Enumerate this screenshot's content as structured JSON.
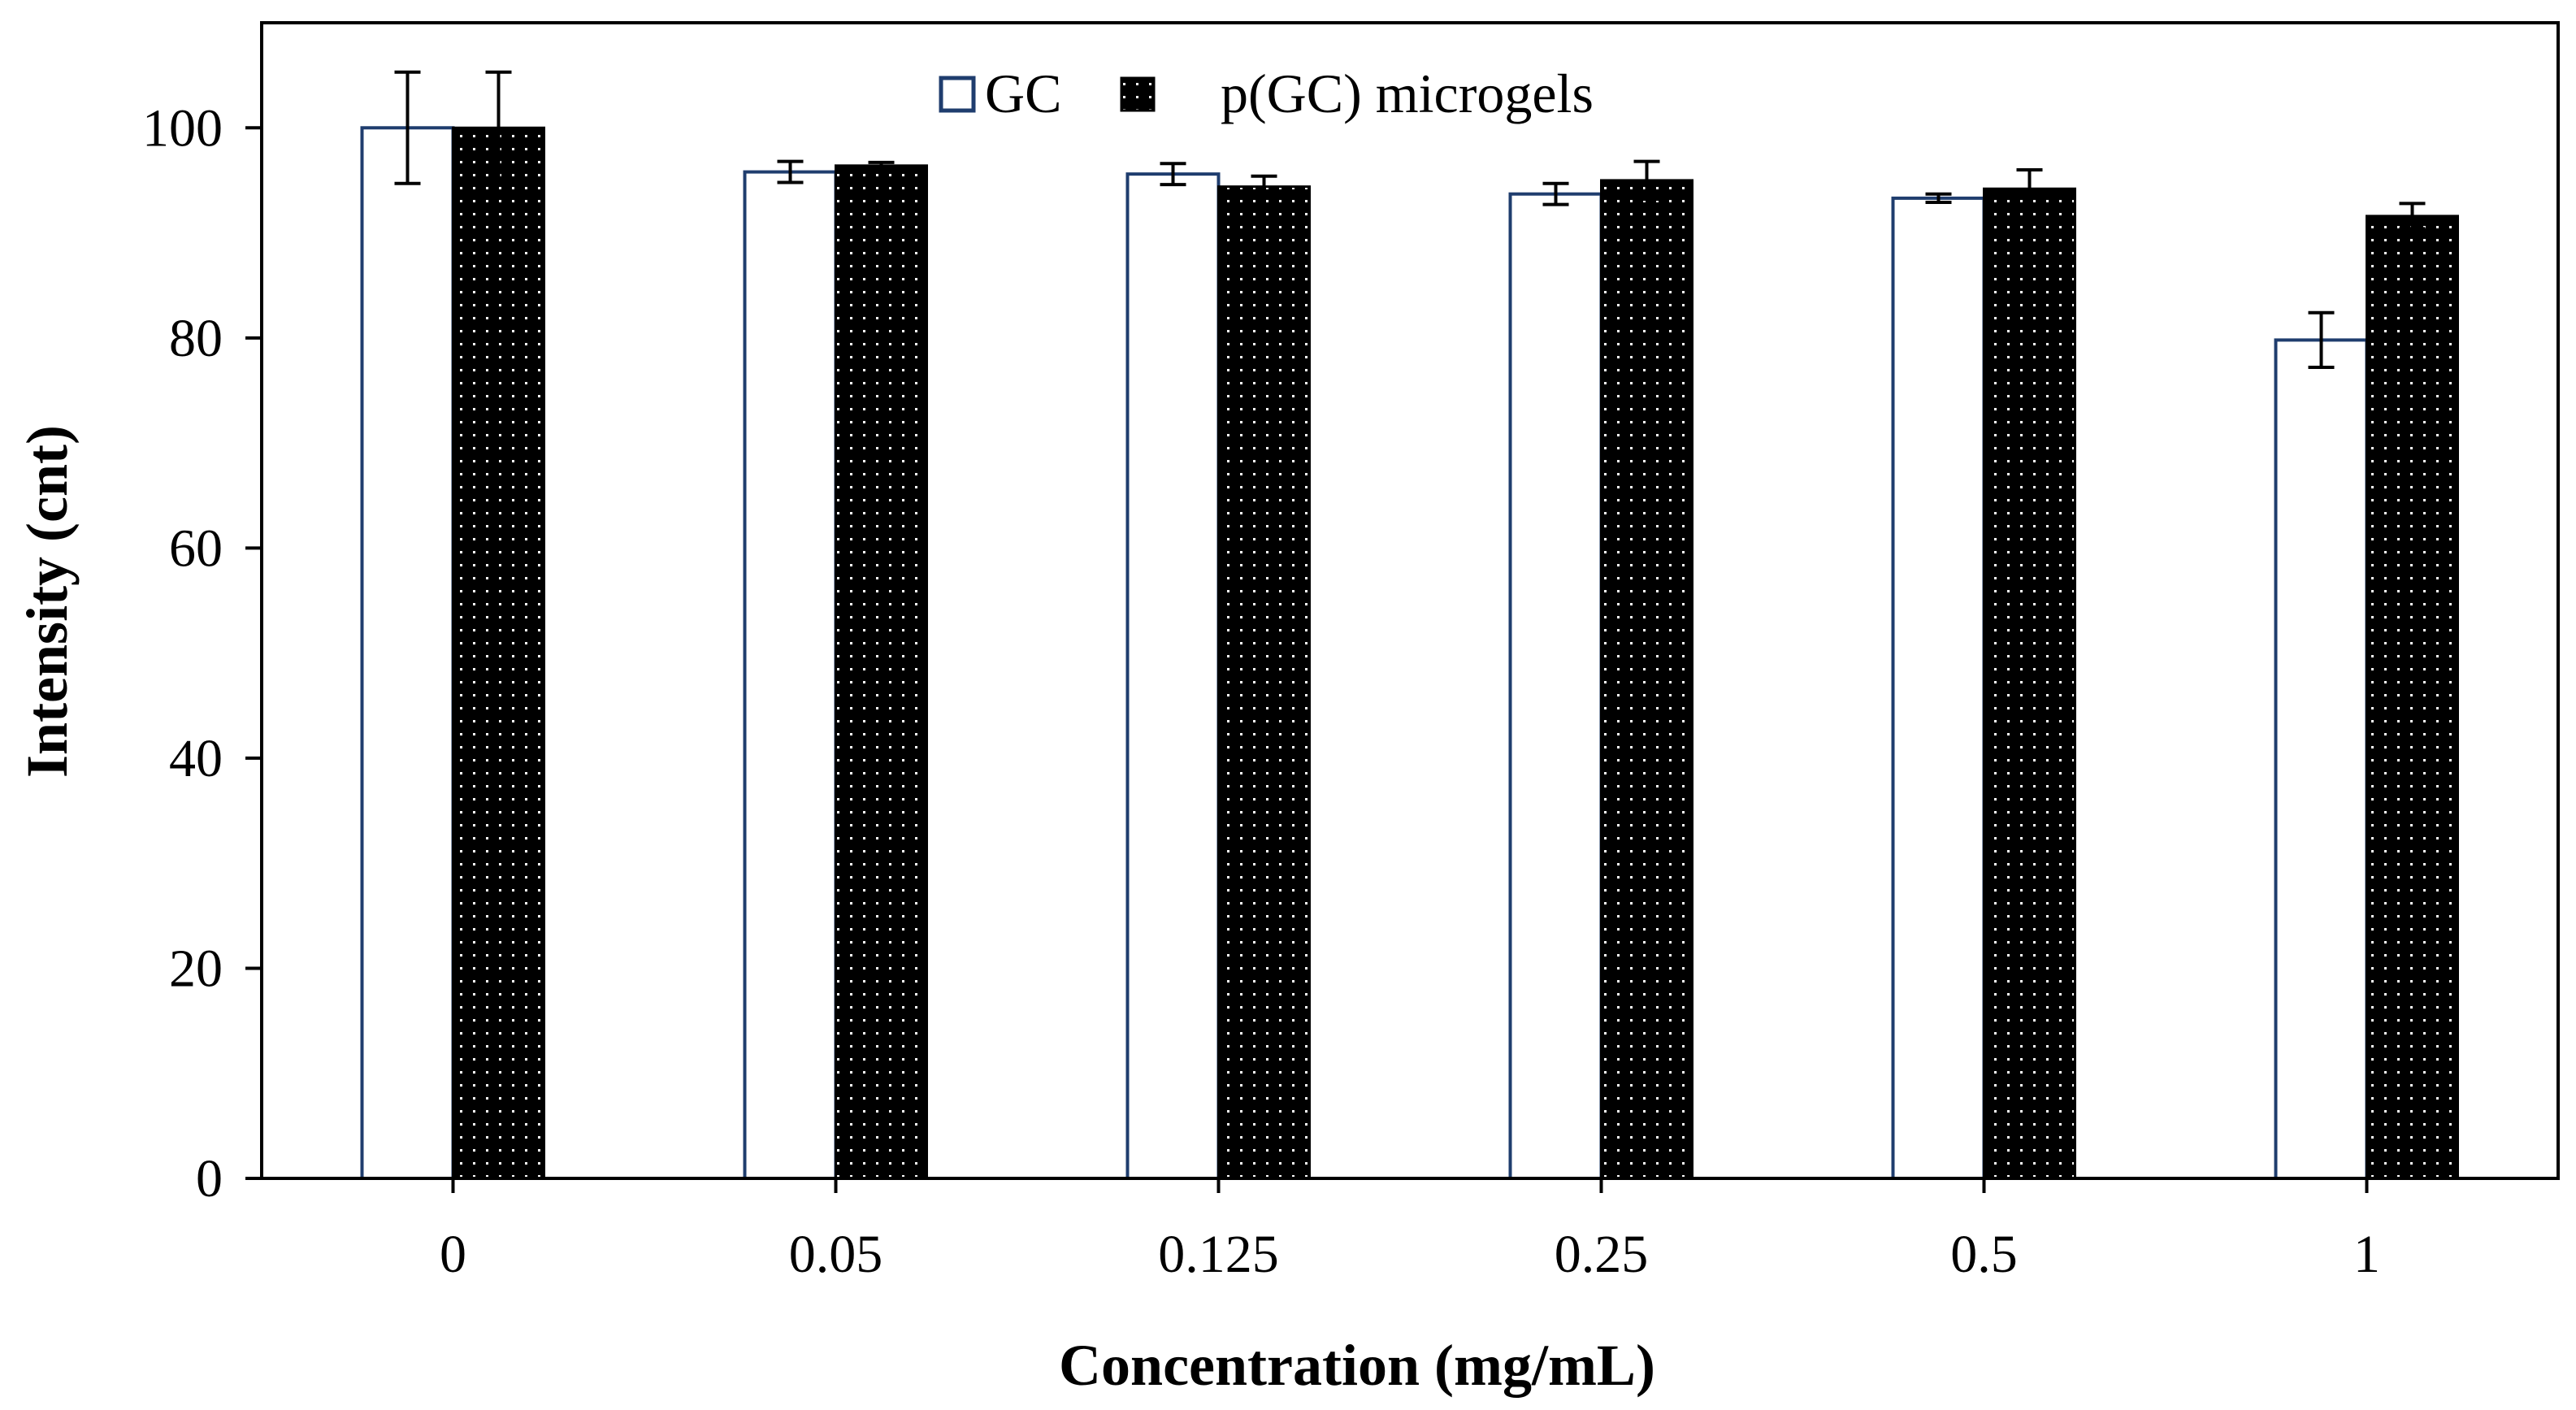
{
  "chart_data": {
    "type": "bar",
    "title": "",
    "xlabel": "Concentration (mg/mL)",
    "ylabel": "Intensity (cnt)",
    "ylim": [
      0,
      110
    ],
    "yticks": [
      0,
      20,
      40,
      60,
      80,
      100
    ],
    "grid": false,
    "legend_position": "top-center",
    "categories": [
      "0",
      "0.05",
      "0.125",
      "0.25",
      "0.5",
      "1"
    ],
    "series": [
      {
        "name": "GC",
        "style": "hollow",
        "edge_color": "#1f3d6e",
        "fill_color": "#ffffff",
        "values": [
          100,
          95.8,
          95.6,
          93.7,
          93.3,
          79.8
        ],
        "errors": [
          5.3,
          1.0,
          1.0,
          1.0,
          0.4,
          2.6
        ]
      },
      {
        "name": "p(GC) microgels",
        "style": "dotted",
        "edge_color": "#000000",
        "fill_color": "#000000",
        "values": [
          100,
          96.4,
          94.4,
          95.0,
          94.2,
          91.6
        ],
        "errors": [
          5.3,
          0.3,
          1.0,
          1.8,
          1.8,
          1.2
        ]
      }
    ]
  }
}
